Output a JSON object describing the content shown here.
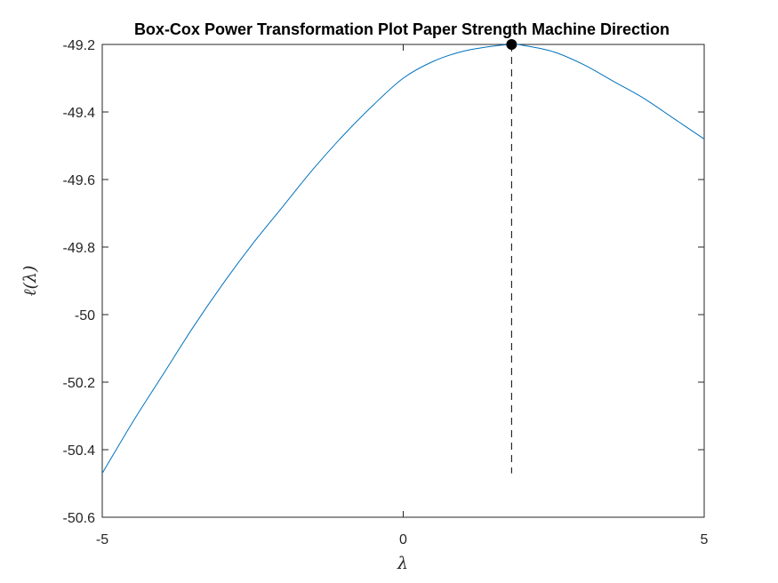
{
  "chart_data": {
    "type": "line",
    "title": "Box-Cox Power Transformation Plot Paper Strength Machine Direction",
    "xlabel": "λ",
    "ylabel": "ℓ(λ)",
    "xlim": [
      -5,
      5
    ],
    "ylim": [
      -50.6,
      -49.2
    ],
    "xticks": [
      -5,
      0,
      5
    ],
    "yticks": [
      -49.2,
      -49.4,
      -49.6,
      -49.8,
      -50,
      -50.2,
      -50.4,
      -50.6
    ],
    "grid": false,
    "legend": "none",
    "series": [
      {
        "color": "#0072BD",
        "x": [
          -5,
          -4.5,
          -4,
          -3.5,
          -3,
          -2.5,
          -2,
          -1.5,
          -1,
          -0.5,
          0,
          0.5,
          1,
          1.5,
          1.8,
          2,
          2.5,
          3,
          3.5,
          4,
          4.5,
          5
        ],
        "y": [
          -50.47,
          -50.32,
          -50.18,
          -50.04,
          -49.91,
          -49.79,
          -49.68,
          -49.57,
          -49.47,
          -49.38,
          -49.3,
          -49.25,
          -49.22,
          -49.205,
          -49.2,
          -49.203,
          -49.222,
          -49.26,
          -49.31,
          -49.36,
          -49.42,
          -49.48
        ]
      }
    ],
    "optimum": {
      "x": 1.8,
      "y": -49.2,
      "color": "#000000"
    },
    "optimum_line": {
      "x": 1.8,
      "y_from": -49.2,
      "y_to": -50.47,
      "style": "dashed"
    }
  }
}
